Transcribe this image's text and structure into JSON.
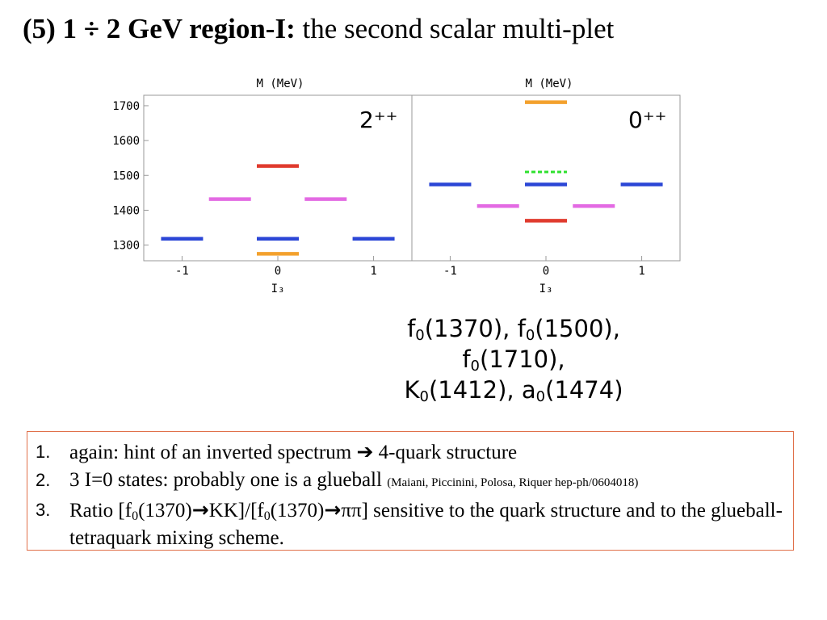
{
  "title": {
    "bold": "(5) 1 ÷ 2 GeV region-I:",
    "rest": " the second scalar multi-plet"
  },
  "chart_data": [
    {
      "type": "scatter",
      "panel_label": "2⁺⁺",
      "ylabel": "M (MeV)",
      "xlabel": "I₃",
      "xticks": [
        "-1",
        "0",
        "1"
      ],
      "yticks": [
        "1300",
        "1400",
        "1500",
        "1600",
        "1700"
      ],
      "xlim": [
        -1.4,
        1.4
      ],
      "ylim": [
        1255,
        1730
      ],
      "levels": [
        {
          "x": 0,
          "y": 1527,
          "color": "#e03b2e",
          "style": "solid"
        },
        {
          "x": -0.5,
          "y": 1432,
          "color": "#e36ae3",
          "style": "solid"
        },
        {
          "x": 0.5,
          "y": 1432,
          "color": "#e36ae3",
          "style": "solid"
        },
        {
          "x": -1,
          "y": 1318,
          "color": "#2b46d6",
          "style": "solid"
        },
        {
          "x": 0,
          "y": 1318,
          "color": "#2b46d6",
          "style": "solid"
        },
        {
          "x": 1,
          "y": 1318,
          "color": "#2b46d6",
          "style": "solid"
        },
        {
          "x": 0,
          "y": 1275,
          "color": "#f3a12d",
          "style": "solid"
        }
      ]
    },
    {
      "type": "scatter",
      "panel_label": "0⁺⁺",
      "ylabel": "M (MeV)",
      "xlabel": "I₃",
      "xticks": [
        "-1",
        "0",
        "1"
      ],
      "yticks": [
        "1300",
        "1400",
        "1500",
        "1600",
        "1700"
      ],
      "xlim": [
        -1.4,
        1.4
      ],
      "ylim": [
        1255,
        1730
      ],
      "levels": [
        {
          "x": 0,
          "y": 1710,
          "color": "#f3a12d",
          "style": "solid"
        },
        {
          "x": 0,
          "y": 1510,
          "color": "#2ee02e",
          "style": "dashed"
        },
        {
          "x": -1,
          "y": 1474,
          "color": "#2b46d6",
          "style": "solid"
        },
        {
          "x": 0,
          "y": 1474,
          "color": "#2b46d6",
          "style": "solid"
        },
        {
          "x": 1,
          "y": 1474,
          "color": "#2b46d6",
          "style": "solid"
        },
        {
          "x": -0.5,
          "y": 1412,
          "color": "#e36ae3",
          "style": "solid"
        },
        {
          "x": 0.5,
          "y": 1412,
          "color": "#e36ae3",
          "style": "solid"
        },
        {
          "x": 0,
          "y": 1370,
          "color": "#e03b2e",
          "style": "solid"
        }
      ]
    }
  ],
  "states": {
    "line1": [
      {
        "b": "f",
        "s": "0",
        "a": "(1370), "
      },
      {
        "b": "f",
        "s": "0",
        "a": "(1500), "
      },
      {
        "b": "f",
        "s": "0",
        "a": "(1710),"
      }
    ],
    "line2": [
      {
        "b": "K",
        "s": "0",
        "a": "(1412), "
      },
      {
        "b": "a",
        "s": "0",
        "a": "(1474)"
      }
    ]
  },
  "notes": {
    "n1": "1.",
    "n2": "2.",
    "n3": "3.",
    "item1_a": " again: hint of an inverted spectrum ",
    "item1_arrow": "➔",
    "item1_b": " 4-quark structure",
    "item2_a": "3 I=0 states: probably one is a glueball ",
    "item2_cite": "(Maiani, Piccinini, Polosa, Riquer hep-ph/0604018)",
    "item3_a": "Ratio [f",
    "item3_sub1": "0",
    "item3_b": "(1370)",
    "item3_arrow1": "→",
    "item3_c": "KK]/[f",
    "item3_sub2": "0",
    "item3_d": "(1370)",
    "item3_arrow2": "→",
    "item3_e": "ππ] sensitive to the quark structure and to the glueball-tetraquark mixing scheme."
  }
}
